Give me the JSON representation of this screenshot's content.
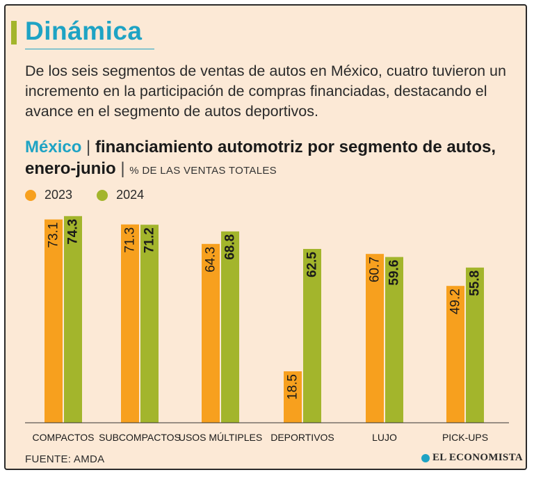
{
  "header": {
    "title": "Dinámica",
    "intro": "De los seis segmentos de ventas de autos en México, cuatro tuvieron un incremento en la participación de compras financiadas, destacando el avance en el segmento de autos deportivos."
  },
  "chart_heading": {
    "region": "México",
    "separator": "|",
    "title": "financiamiento automotriz por segmento de autos, enero-junio",
    "units": "% DE LAS VENTAS TOTALES"
  },
  "chart_data": {
    "type": "bar",
    "categories": [
      "COMPACTOS",
      "SUBCOMPACTOS",
      "USOS MÚLTIPLES",
      "DEPORTIVOS",
      "LUJO",
      "PICK-UPS"
    ],
    "series": [
      {
        "name": "2023",
        "color": "#f7a01e",
        "values": [
          73.1,
          71.3,
          64.3,
          18.5,
          60.7,
          49.2
        ],
        "labels": [
          "73.1",
          "71.3",
          "64.3",
          "18.5",
          "60.7",
          "49.2"
        ]
      },
      {
        "name": "2024",
        "color": "#a3b52c",
        "values": [
          74.3,
          71.2,
          68.8,
          62.5,
          59.6,
          55.8
        ],
        "labels": [
          "74.3",
          "71.2",
          "68.8",
          "62.5",
          "59.6",
          "55.8"
        ]
      }
    ],
    "ylim": [
      0,
      80
    ],
    "grid": false,
    "legend": "top-left"
  },
  "footer": {
    "source": "FUENTE: AMDA",
    "logo": "EL ECONOMISTA",
    "logo_icon": "el-economista-logo-icon"
  }
}
